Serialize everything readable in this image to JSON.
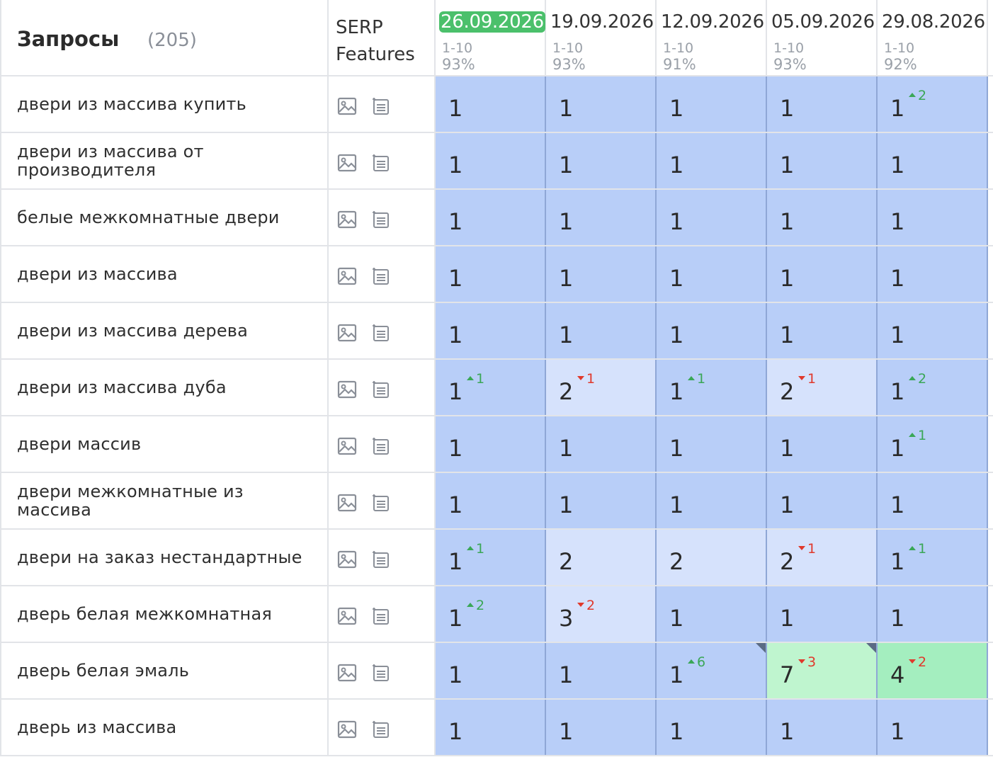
{
  "header": {
    "queries_label": "Запросы",
    "queries_count": "(205)",
    "serp_label": "SERP Features",
    "dates": [
      {
        "date": "26.09.2026",
        "range": "1-10",
        "pct": "93%",
        "active": true
      },
      {
        "date": "19.09.2026",
        "range": "1-10",
        "pct": "93%",
        "active": false
      },
      {
        "date": "12.09.2026",
        "range": "1-10",
        "pct": "91%",
        "active": false
      },
      {
        "date": "05.09.2026",
        "range": "1-10",
        "pct": "93%",
        "active": false
      },
      {
        "date": "29.08.2026",
        "range": "1-10",
        "pct": "92%",
        "active": false
      }
    ]
  },
  "icons": [
    "image-icon",
    "list-icon"
  ],
  "colors": {
    "top_blue": "#b8cef8",
    "light_blue": "#d6e2fc",
    "green": "#bff5cf",
    "green_dark": "#a4eebf",
    "active_date": "#4bc06b",
    "up": "#3aa757",
    "down": "#e0392c"
  },
  "rows": [
    {
      "query": "двери из массива купить",
      "cells": [
        {
          "pos": "1",
          "delta": "",
          "dir": "",
          "bg": "blue"
        },
        {
          "pos": "1",
          "delta": "",
          "dir": "",
          "bg": "blue"
        },
        {
          "pos": "1",
          "delta": "",
          "dir": "",
          "bg": "blue"
        },
        {
          "pos": "1",
          "delta": "",
          "dir": "",
          "bg": "blue"
        },
        {
          "pos": "1",
          "delta": "2",
          "dir": "up",
          "bg": "blue"
        }
      ]
    },
    {
      "query": "двери из массива от производителя",
      "cells": [
        {
          "pos": "1",
          "delta": "",
          "dir": "",
          "bg": "blue"
        },
        {
          "pos": "1",
          "delta": "",
          "dir": "",
          "bg": "blue"
        },
        {
          "pos": "1",
          "delta": "",
          "dir": "",
          "bg": "blue"
        },
        {
          "pos": "1",
          "delta": "",
          "dir": "",
          "bg": "blue"
        },
        {
          "pos": "1",
          "delta": "",
          "dir": "",
          "bg": "blue"
        }
      ]
    },
    {
      "query": "белые межкомнатные двери",
      "cells": [
        {
          "pos": "1",
          "delta": "",
          "dir": "",
          "bg": "blue"
        },
        {
          "pos": "1",
          "delta": "",
          "dir": "",
          "bg": "blue"
        },
        {
          "pos": "1",
          "delta": "",
          "dir": "",
          "bg": "blue"
        },
        {
          "pos": "1",
          "delta": "",
          "dir": "",
          "bg": "blue"
        },
        {
          "pos": "1",
          "delta": "",
          "dir": "",
          "bg": "blue"
        }
      ]
    },
    {
      "query": "двери из массива",
      "cells": [
        {
          "pos": "1",
          "delta": "",
          "dir": "",
          "bg": "blue"
        },
        {
          "pos": "1",
          "delta": "",
          "dir": "",
          "bg": "blue"
        },
        {
          "pos": "1",
          "delta": "",
          "dir": "",
          "bg": "blue"
        },
        {
          "pos": "1",
          "delta": "",
          "dir": "",
          "bg": "blue"
        },
        {
          "pos": "1",
          "delta": "",
          "dir": "",
          "bg": "blue"
        }
      ]
    },
    {
      "query": "двери из массива дерева",
      "cells": [
        {
          "pos": "1",
          "delta": "",
          "dir": "",
          "bg": "blue"
        },
        {
          "pos": "1",
          "delta": "",
          "dir": "",
          "bg": "blue"
        },
        {
          "pos": "1",
          "delta": "",
          "dir": "",
          "bg": "blue"
        },
        {
          "pos": "1",
          "delta": "",
          "dir": "",
          "bg": "blue"
        },
        {
          "pos": "1",
          "delta": "",
          "dir": "",
          "bg": "blue"
        }
      ]
    },
    {
      "query": "двери из массива дуба",
      "cells": [
        {
          "pos": "1",
          "delta": "1",
          "dir": "up",
          "bg": "blue"
        },
        {
          "pos": "2",
          "delta": "1",
          "dir": "down",
          "bg": "light"
        },
        {
          "pos": "1",
          "delta": "1",
          "dir": "up",
          "bg": "blue"
        },
        {
          "pos": "2",
          "delta": "1",
          "dir": "down",
          "bg": "light"
        },
        {
          "pos": "1",
          "delta": "2",
          "dir": "up",
          "bg": "blue"
        }
      ]
    },
    {
      "query": "двери массив",
      "cells": [
        {
          "pos": "1",
          "delta": "",
          "dir": "",
          "bg": "blue"
        },
        {
          "pos": "1",
          "delta": "",
          "dir": "",
          "bg": "blue"
        },
        {
          "pos": "1",
          "delta": "",
          "dir": "",
          "bg": "blue"
        },
        {
          "pos": "1",
          "delta": "",
          "dir": "",
          "bg": "blue"
        },
        {
          "pos": "1",
          "delta": "1",
          "dir": "up",
          "bg": "blue"
        }
      ]
    },
    {
      "query": "двери межкомнатные из массива",
      "cells": [
        {
          "pos": "1",
          "delta": "",
          "dir": "",
          "bg": "blue"
        },
        {
          "pos": "1",
          "delta": "",
          "dir": "",
          "bg": "blue"
        },
        {
          "pos": "1",
          "delta": "",
          "dir": "",
          "bg": "blue"
        },
        {
          "pos": "1",
          "delta": "",
          "dir": "",
          "bg": "blue"
        },
        {
          "pos": "1",
          "delta": "",
          "dir": "",
          "bg": "blue"
        }
      ]
    },
    {
      "query": "двери на заказ нестандартные",
      "cells": [
        {
          "pos": "1",
          "delta": "1",
          "dir": "up",
          "bg": "blue"
        },
        {
          "pos": "2",
          "delta": "",
          "dir": "",
          "bg": "light"
        },
        {
          "pos": "2",
          "delta": "",
          "dir": "",
          "bg": "light"
        },
        {
          "pos": "2",
          "delta": "1",
          "dir": "down",
          "bg": "light"
        },
        {
          "pos": "1",
          "delta": "1",
          "dir": "up",
          "bg": "blue"
        }
      ]
    },
    {
      "query": "дверь белая межкомнатная",
      "cells": [
        {
          "pos": "1",
          "delta": "2",
          "dir": "up",
          "bg": "blue"
        },
        {
          "pos": "3",
          "delta": "2",
          "dir": "down",
          "bg": "light"
        },
        {
          "pos": "1",
          "delta": "",
          "dir": "",
          "bg": "blue"
        },
        {
          "pos": "1",
          "delta": "",
          "dir": "",
          "bg": "blue"
        },
        {
          "pos": "1",
          "delta": "",
          "dir": "",
          "bg": "blue"
        }
      ]
    },
    {
      "query": "дверь белая эмаль",
      "cells": [
        {
          "pos": "1",
          "delta": "",
          "dir": "",
          "bg": "blue"
        },
        {
          "pos": "1",
          "delta": "",
          "dir": "",
          "bg": "blue"
        },
        {
          "pos": "1",
          "delta": "6",
          "dir": "up",
          "bg": "blue",
          "corner": true
        },
        {
          "pos": "7",
          "delta": "3",
          "dir": "down",
          "bg": "green",
          "corner": true
        },
        {
          "pos": "4",
          "delta": "2",
          "dir": "down",
          "bg": "green2"
        }
      ]
    },
    {
      "query": "дверь из массива",
      "cells": [
        {
          "pos": "1",
          "delta": "",
          "dir": "",
          "bg": "blue"
        },
        {
          "pos": "1",
          "delta": "",
          "dir": "",
          "bg": "blue"
        },
        {
          "pos": "1",
          "delta": "",
          "dir": "",
          "bg": "blue"
        },
        {
          "pos": "1",
          "delta": "",
          "dir": "",
          "bg": "blue"
        },
        {
          "pos": "1",
          "delta": "",
          "dir": "",
          "bg": "blue"
        }
      ]
    }
  ]
}
